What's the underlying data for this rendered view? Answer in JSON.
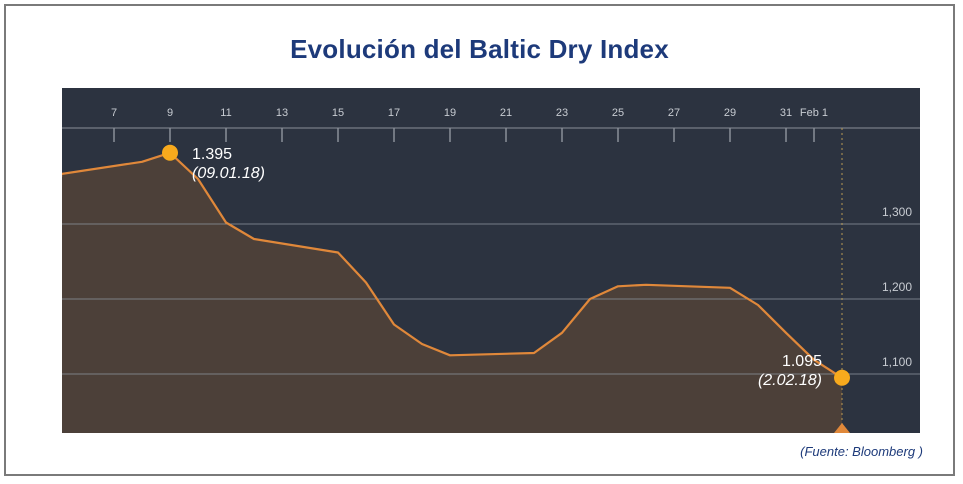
{
  "header": {
    "title": "Evolución del Baltic Dry Index"
  },
  "footer": {
    "source": "(Fuente: Bloomberg )"
  },
  "colors": {
    "background": "#2c3340",
    "line": "#e0883a",
    "area": "#4c4039",
    "point": "#f8aa1d",
    "grid": "#8a8f98",
    "tick_text": "#c8ccd2",
    "title": "#1d3a7a"
  },
  "chart_data": {
    "type": "area",
    "title": "Evolución del Baltic Dry Index",
    "xlabel": "",
    "ylabel": "",
    "x_ticks": [
      "7",
      "9",
      "11",
      "13",
      "15",
      "17",
      "19",
      "21",
      "23",
      "25",
      "27",
      "29",
      "31",
      "Feb 1"
    ],
    "y_ticks": [
      "1,100",
      "1,200",
      "1,300"
    ],
    "ylim": [
      1040,
      1460
    ],
    "x": [
      "2018-01-05",
      "2018-01-08",
      "2018-01-09",
      "2018-01-10",
      "2018-01-11",
      "2018-01-12",
      "2018-01-15",
      "2018-01-16",
      "2018-01-17",
      "2018-01-18",
      "2018-01-19",
      "2018-01-22",
      "2018-01-23",
      "2018-01-24",
      "2018-01-25",
      "2018-01-26",
      "2018-01-29",
      "2018-01-30",
      "2018-01-31",
      "2018-02-01",
      "2018-02-02"
    ],
    "values": [
      1366,
      1383,
      1395,
      1360,
      1302,
      1280,
      1262,
      1222,
      1166,
      1140,
      1125,
      1128,
      1155,
      1200,
      1217,
      1219,
      1215,
      1192,
      1155,
      1119,
      1095
    ],
    "annotations": [
      {
        "value": "1.395",
        "date": "(09.01.18)",
        "x": "2018-01-09",
        "y": 1395
      },
      {
        "value": "1.095",
        "date": "(2.02.18)",
        "x": "2018-02-02",
        "y": 1095
      }
    ],
    "grid": true,
    "current_marker_x": "2018-02-02"
  }
}
